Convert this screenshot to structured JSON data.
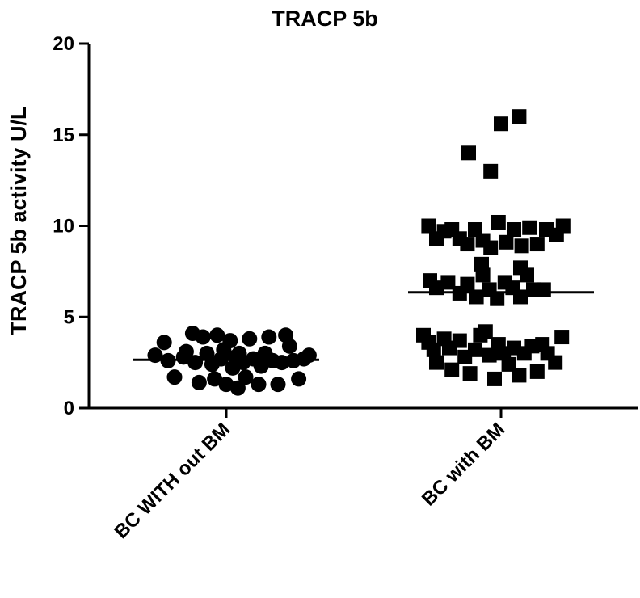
{
  "chart_data": {
    "type": "scatter",
    "title": "TRACP 5b",
    "xlabel": "",
    "ylabel": "TRACP 5b activity U/L",
    "ylim": [
      0,
      20
    ],
    "yticks": [
      "0",
      "5",
      "10",
      "15",
      "20"
    ],
    "categories": [
      "BC WITH out BM",
      "BC with BM"
    ],
    "grid": false,
    "colors": {
      "points": "#000000",
      "axes": "#000000"
    },
    "series": [
      {
        "category": "BC WITH out BM",
        "marker": "circle",
        "median": 2.65,
        "points": [
          {
            "x": -0.55,
            "y": 2.9
          },
          {
            "x": -0.48,
            "y": 3.6
          },
          {
            "x": -0.45,
            "y": 2.6
          },
          {
            "x": -0.4,
            "y": 1.7
          },
          {
            "x": -0.33,
            "y": 2.8
          },
          {
            "x": -0.31,
            "y": 3.1
          },
          {
            "x": -0.26,
            "y": 4.1
          },
          {
            "x": -0.24,
            "y": 2.5
          },
          {
            "x": -0.21,
            "y": 1.4
          },
          {
            "x": -0.18,
            "y": 3.9
          },
          {
            "x": -0.15,
            "y": 3.0
          },
          {
            "x": -0.11,
            "y": 2.4
          },
          {
            "x": -0.09,
            "y": 1.6
          },
          {
            "x": -0.07,
            "y": 4.0
          },
          {
            "x": -0.04,
            "y": 2.7
          },
          {
            "x": -0.02,
            "y": 3.2
          },
          {
            "x": 0.0,
            "y": 1.3
          },
          {
            "x": 0.03,
            "y": 3.7
          },
          {
            "x": 0.05,
            "y": 2.2
          },
          {
            "x": 0.07,
            "y": 2.8
          },
          {
            "x": 0.09,
            "y": 1.1
          },
          {
            "x": 0.1,
            "y": 3.0
          },
          {
            "x": 0.13,
            "y": 2.5
          },
          {
            "x": 0.15,
            "y": 1.7
          },
          {
            "x": 0.18,
            "y": 3.8
          },
          {
            "x": 0.21,
            "y": 2.7
          },
          {
            "x": 0.25,
            "y": 1.3
          },
          {
            "x": 0.27,
            "y": 2.3
          },
          {
            "x": 0.3,
            "y": 3.0
          },
          {
            "x": 0.33,
            "y": 3.9
          },
          {
            "x": 0.36,
            "y": 2.6
          },
          {
            "x": 0.4,
            "y": 1.3
          },
          {
            "x": 0.43,
            "y": 2.5
          },
          {
            "x": 0.46,
            "y": 4.0
          },
          {
            "x": 0.49,
            "y": 3.4
          },
          {
            "x": 0.52,
            "y": 2.6
          },
          {
            "x": 0.56,
            "y": 1.6
          },
          {
            "x": 0.6,
            "y": 2.7
          },
          {
            "x": 0.64,
            "y": 2.9
          }
        ]
      },
      {
        "category": "BC with BM",
        "marker": "square",
        "median": 6.35,
        "points": [
          {
            "x": -0.6,
            "y": 4.0
          },
          {
            "x": -0.56,
            "y": 3.6
          },
          {
            "x": -0.52,
            "y": 3.2
          },
          {
            "x": -0.5,
            "y": 2.5
          },
          {
            "x": -0.44,
            "y": 3.8
          },
          {
            "x": -0.4,
            "y": 3.3
          },
          {
            "x": -0.38,
            "y": 2.1
          },
          {
            "x": -0.32,
            "y": 3.7
          },
          {
            "x": -0.28,
            "y": 2.8
          },
          {
            "x": -0.24,
            "y": 1.9
          },
          {
            "x": -0.2,
            "y": 3.2
          },
          {
            "x": -0.16,
            "y": 4.0
          },
          {
            "x": -0.12,
            "y": 4.2
          },
          {
            "x": -0.09,
            "y": 2.9
          },
          {
            "x": -0.05,
            "y": 1.6
          },
          {
            "x": -0.02,
            "y": 3.5
          },
          {
            "x": 0.02,
            "y": 3.0
          },
          {
            "x": 0.06,
            "y": 2.4
          },
          {
            "x": 0.1,
            "y": 3.3
          },
          {
            "x": 0.14,
            "y": 1.8
          },
          {
            "x": 0.18,
            "y": 3.0
          },
          {
            "x": 0.24,
            "y": 3.4
          },
          {
            "x": 0.28,
            "y": 2.0
          },
          {
            "x": 0.32,
            "y": 3.5
          },
          {
            "x": 0.36,
            "y": 3.0
          },
          {
            "x": 0.42,
            "y": 2.5
          },
          {
            "x": 0.47,
            "y": 3.9
          },
          {
            "x": -0.55,
            "y": 7.0
          },
          {
            "x": -0.5,
            "y": 6.6
          },
          {
            "x": -0.41,
            "y": 6.9
          },
          {
            "x": -0.32,
            "y": 6.3
          },
          {
            "x": -0.26,
            "y": 6.8
          },
          {
            "x": -0.19,
            "y": 6.1
          },
          {
            "x": -0.14,
            "y": 7.3
          },
          {
            "x": -0.09,
            "y": 6.5
          },
          {
            "x": -0.03,
            "y": 6.0
          },
          {
            "x": 0.03,
            "y": 6.9
          },
          {
            "x": 0.09,
            "y": 6.6
          },
          {
            "x": 0.15,
            "y": 6.1
          },
          {
            "x": 0.2,
            "y": 7.3
          },
          {
            "x": 0.25,
            "y": 6.5
          },
          {
            "x": 0.33,
            "y": 6.5
          },
          {
            "x": -0.56,
            "y": 10.0
          },
          {
            "x": -0.5,
            "y": 9.3
          },
          {
            "x": -0.44,
            "y": 9.7
          },
          {
            "x": -0.38,
            "y": 9.8
          },
          {
            "x": -0.32,
            "y": 9.3
          },
          {
            "x": -0.26,
            "y": 9.0
          },
          {
            "x": -0.2,
            "y": 9.8
          },
          {
            "x": -0.14,
            "y": 9.2
          },
          {
            "x": -0.08,
            "y": 8.8
          },
          {
            "x": -0.02,
            "y": 10.2
          },
          {
            "x": 0.04,
            "y": 9.1
          },
          {
            "x": 0.1,
            "y": 9.8
          },
          {
            "x": 0.16,
            "y": 8.9
          },
          {
            "x": 0.22,
            "y": 9.9
          },
          {
            "x": 0.28,
            "y": 9.0
          },
          {
            "x": 0.35,
            "y": 9.8
          },
          {
            "x": 0.43,
            "y": 9.5
          },
          {
            "x": 0.48,
            "y": 10.0
          },
          {
            "x": -0.15,
            "y": 7.9
          },
          {
            "x": 0.15,
            "y": 7.7
          },
          {
            "x": -0.25,
            "y": 14.0
          },
          {
            "x": -0.08,
            "y": 13.0
          },
          {
            "x": 0.0,
            "y": 15.6
          },
          {
            "x": 0.14,
            "y": 16.0
          }
        ]
      }
    ]
  }
}
